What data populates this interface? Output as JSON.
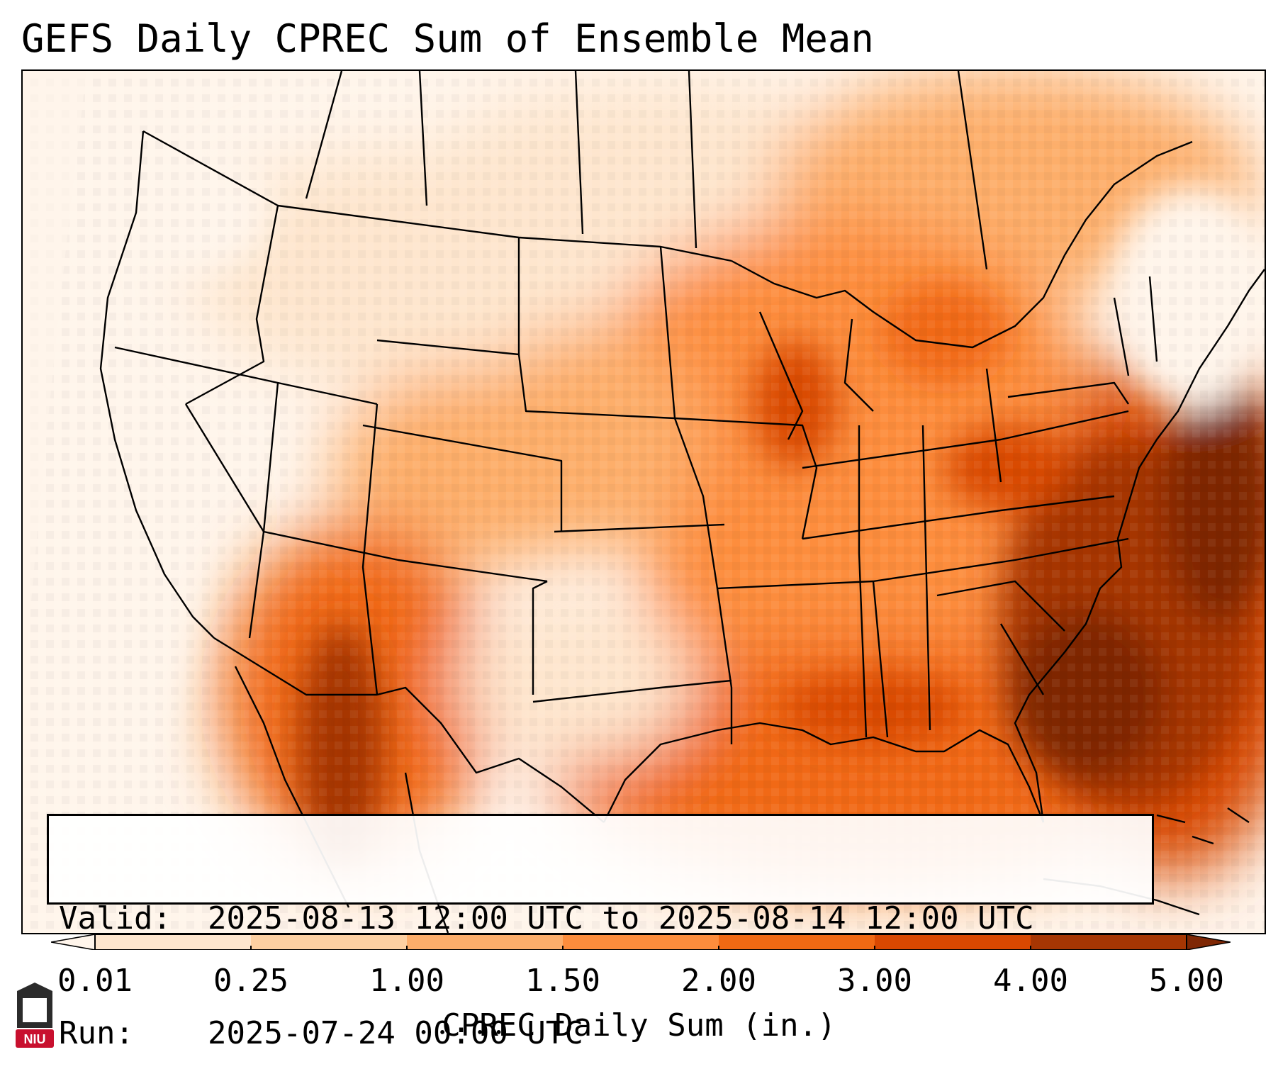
{
  "title": "GEFS Daily CPREC Sum of Ensemble Mean",
  "info": {
    "valid_label": "Valid:",
    "valid_value": "2025-08-13 12:00 UTC to 2025-08-14 12:00 UTC",
    "run_label": "Run:",
    "run_value": "2025-07-24 00:00 UTC"
  },
  "colorbar": {
    "label": "CPREC Daily Sum (in.)",
    "ticks": [
      "0.01",
      "0.25",
      "1.00",
      "1.50",
      "2.00",
      "3.00",
      "4.00",
      "5.00"
    ],
    "colors": [
      "#fff5eb",
      "#fee6ce",
      "#fdd0a2",
      "#fdae6b",
      "#fd8d3c",
      "#f16913",
      "#d94801",
      "#a63603",
      "#7f2704"
    ],
    "extend": "both"
  },
  "logo": {
    "text": "NIU",
    "colors": {
      "red": "#c8102e",
      "dark": "#2b2b2b"
    }
  },
  "map": {
    "projection": "lambert-conformal-conus",
    "features": [
      "state-borders",
      "country-borders",
      "coastlines"
    ]
  }
}
